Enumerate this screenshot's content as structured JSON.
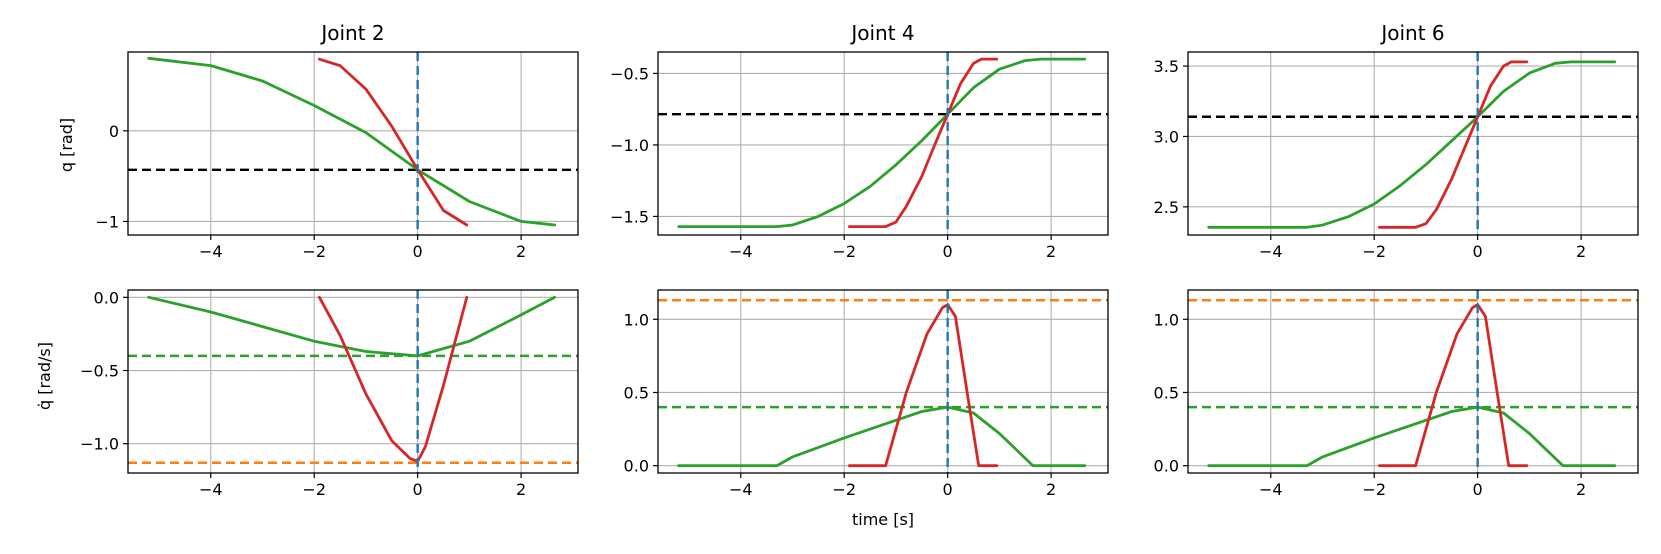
{
  "figure": {
    "xlabel": "time [s]",
    "ylabel_top": "q [rad]",
    "ylabel_bottom": "q̇ [rad/s]"
  },
  "chart_data": [
    {
      "type": "line",
      "row": 0,
      "col": 0,
      "title": "Joint 2",
      "ylabel": "q [rad]",
      "xlim": [
        -5.6,
        3.1
      ],
      "ylim": [
        -1.15,
        0.87
      ],
      "xticks": [
        -4,
        -2,
        0,
        2
      ],
      "xtick_labels": [
        "−4",
        "−2",
        "0",
        "2"
      ],
      "yticks": [
        -1,
        0
      ],
      "ytick_labels": [
        "−1",
        "0"
      ],
      "grid": true,
      "hlines": [
        {
          "y": -0.43,
          "color": "#000000",
          "dash": true
        }
      ],
      "vlines": [
        {
          "x": 0,
          "color": "#1f77b4",
          "dash": true
        }
      ],
      "series": [
        {
          "color": "#2ca02c",
          "x": [
            -5.2,
            -4,
            -3,
            -2,
            -1,
            0,
            1,
            2,
            2.65
          ],
          "y": [
            0.8,
            0.72,
            0.55,
            0.28,
            -0.02,
            -0.43,
            -0.78,
            -1.0,
            -1.04
          ]
        },
        {
          "color": "#ff7f0e",
          "dashed": true,
          "x": [
            -1.9,
            -1.5,
            -1,
            -0.5,
            0,
            0.5,
            0.95
          ],
          "y": [
            0.79,
            0.72,
            0.46,
            0.05,
            -0.43,
            -0.88,
            -1.04
          ]
        },
        {
          "color": "#d62728",
          "x": [
            -1.9,
            -1.5,
            -1,
            -0.5,
            0,
            0.5,
            0.95
          ],
          "y": [
            0.79,
            0.72,
            0.46,
            0.05,
            -0.43,
            -0.88,
            -1.04
          ]
        }
      ]
    },
    {
      "type": "line",
      "row": 0,
      "col": 1,
      "title": "Joint 4",
      "xlim": [
        -5.6,
        3.1
      ],
      "ylim": [
        -1.63,
        -0.35
      ],
      "xticks": [
        -4,
        -2,
        0,
        2
      ],
      "xtick_labels": [
        "−4",
        "−2",
        "0",
        "2"
      ],
      "yticks": [
        -1.5,
        -1.0,
        -0.5
      ],
      "ytick_labels": [
        "−1.5",
        "−1.0",
        "−0.5"
      ],
      "grid": true,
      "hlines": [
        {
          "y": -0.785,
          "color": "#000000",
          "dash": true
        }
      ],
      "vlines": [
        {
          "x": 0,
          "color": "#1f77b4",
          "dash": true
        }
      ],
      "series": [
        {
          "color": "#2ca02c",
          "x": [
            -5.2,
            -4,
            -3.3,
            -3,
            -2.5,
            -2,
            -1.5,
            -1,
            -0.5,
            0,
            0.5,
            1,
            1.5,
            1.8,
            2.65
          ],
          "y": [
            -1.571,
            -1.571,
            -1.571,
            -1.56,
            -1.5,
            -1.41,
            -1.29,
            -1.14,
            -0.97,
            -0.785,
            -0.6,
            -0.47,
            -0.41,
            -0.4,
            -0.4
          ]
        },
        {
          "color": "#ff7f0e",
          "dashed": true,
          "x": [
            -1.9,
            -1.2,
            -1.0,
            -0.8,
            -0.5,
            -0.25,
            0,
            0.25,
            0.5,
            0.65,
            0.95
          ],
          "y": [
            -1.571,
            -1.571,
            -1.54,
            -1.43,
            -1.22,
            -1.0,
            -0.785,
            -0.57,
            -0.43,
            -0.4,
            -0.4
          ]
        },
        {
          "color": "#d62728",
          "x": [
            -1.9,
            -1.2,
            -1.0,
            -0.8,
            -0.5,
            -0.25,
            0,
            0.25,
            0.5,
            0.65,
            0.95
          ],
          "y": [
            -1.571,
            -1.571,
            -1.54,
            -1.43,
            -1.22,
            -1.0,
            -0.785,
            -0.57,
            -0.43,
            -0.4,
            -0.4
          ]
        }
      ]
    },
    {
      "type": "line",
      "row": 0,
      "col": 2,
      "title": "Joint 6",
      "xlim": [
        -5.6,
        3.1
      ],
      "ylim": [
        2.3,
        3.6
      ],
      "xticks": [
        -4,
        -2,
        0,
        2
      ],
      "xtick_labels": [
        "−4",
        "−2",
        "0",
        "2"
      ],
      "yticks": [
        2.5,
        3.0,
        3.5
      ],
      "ytick_labels": [
        "2.5",
        "3.0",
        "3.5"
      ],
      "grid": true,
      "hlines": [
        {
          "y": 3.14,
          "color": "#000000",
          "dash": true
        }
      ],
      "vlines": [
        {
          "x": 0,
          "color": "#1f77b4",
          "dash": true
        }
      ],
      "series": [
        {
          "color": "#2ca02c",
          "x": [
            -5.2,
            -4,
            -3.3,
            -3,
            -2.5,
            -2,
            -1.5,
            -1,
            -0.5,
            0,
            0.5,
            1,
            1.5,
            1.8,
            2.65
          ],
          "y": [
            2.355,
            2.355,
            2.355,
            2.37,
            2.43,
            2.52,
            2.65,
            2.8,
            2.97,
            3.14,
            3.32,
            3.45,
            3.52,
            3.53,
            3.53
          ]
        },
        {
          "color": "#ff7f0e",
          "dashed": true,
          "x": [
            -1.9,
            -1.2,
            -1.0,
            -0.8,
            -0.5,
            -0.25,
            0,
            0.25,
            0.5,
            0.65,
            0.95
          ],
          "y": [
            2.355,
            2.355,
            2.38,
            2.48,
            2.7,
            2.92,
            3.14,
            3.36,
            3.5,
            3.53,
            3.53
          ]
        },
        {
          "color": "#d62728",
          "x": [
            -1.9,
            -1.2,
            -1.0,
            -0.8,
            -0.5,
            -0.25,
            0,
            0.25,
            0.5,
            0.65,
            0.95
          ],
          "y": [
            2.355,
            2.355,
            2.38,
            2.48,
            2.7,
            2.92,
            3.14,
            3.36,
            3.5,
            3.53,
            3.53
          ]
        }
      ]
    },
    {
      "type": "line",
      "row": 1,
      "col": 0,
      "ylabel": "q̇ [rad/s]",
      "xlim": [
        -5.6,
        3.1
      ],
      "ylim": [
        -1.2,
        0.05
      ],
      "xticks": [
        -4,
        -2,
        0,
        2
      ],
      "xtick_labels": [
        "−4",
        "−2",
        "0",
        "2"
      ],
      "yticks": [
        -1.0,
        -0.5,
        0.0
      ],
      "ytick_labels": [
        "−1.0",
        "−0.5",
        "0.0"
      ],
      "grid": true,
      "hlines": [
        {
          "y": -0.4,
          "color": "#2ca02c",
          "dash": true
        },
        {
          "y": -1.13,
          "color": "#ff7f0e",
          "dash": true
        }
      ],
      "vlines": [
        {
          "x": 0,
          "color": "#1f77b4",
          "dash": true
        }
      ],
      "series": [
        {
          "color": "#2ca02c",
          "x": [
            -5.2,
            -4,
            -3,
            -2,
            -1,
            0,
            1,
            2,
            2.65
          ],
          "y": [
            0.0,
            -0.1,
            -0.2,
            -0.3,
            -0.37,
            -0.4,
            -0.3,
            -0.12,
            0.0
          ]
        },
        {
          "color": "#ff7f0e",
          "dashed": true,
          "x": [
            -1.9,
            -1.5,
            -1,
            -0.5,
            -0.15,
            0,
            0.15,
            0.5,
            0.95
          ],
          "y": [
            0.0,
            -0.26,
            -0.66,
            -0.98,
            -1.1,
            -1.12,
            -1.02,
            -0.6,
            0.0
          ]
        },
        {
          "color": "#d62728",
          "x": [
            -1.9,
            -1.5,
            -1,
            -0.5,
            -0.15,
            0,
            0.15,
            0.5,
            0.95
          ],
          "y": [
            0.0,
            -0.26,
            -0.66,
            -0.98,
            -1.1,
            -1.12,
            -1.02,
            -0.6,
            0.0
          ]
        }
      ]
    },
    {
      "type": "line",
      "row": 1,
      "col": 1,
      "xlim": [
        -5.6,
        3.1
      ],
      "ylim": [
        -0.05,
        1.2
      ],
      "xticks": [
        -4,
        -2,
        0,
        2
      ],
      "xtick_labels": [
        "−4",
        "−2",
        "0",
        "2"
      ],
      "yticks": [
        0.0,
        0.5,
        1.0
      ],
      "ytick_labels": [
        "0.0",
        "0.5",
        "1.0"
      ],
      "grid": true,
      "hlines": [
        {
          "y": 0.4,
          "color": "#2ca02c",
          "dash": true
        },
        {
          "y": 1.13,
          "color": "#ff7f0e",
          "dash": true
        }
      ],
      "vlines": [
        {
          "x": 0,
          "color": "#1f77b4",
          "dash": true
        }
      ],
      "series": [
        {
          "color": "#2ca02c",
          "x": [
            -5.2,
            -4,
            -3.3,
            -3,
            -2,
            -1,
            -0.5,
            0,
            0.5,
            1,
            1.65,
            2.65
          ],
          "y": [
            0.0,
            0.0,
            0.0,
            0.06,
            0.19,
            0.31,
            0.37,
            0.4,
            0.36,
            0.22,
            0.0,
            0.0
          ]
        },
        {
          "color": "#ff7f0e",
          "dashed": true,
          "x": [
            -1.9,
            -1.2,
            -0.8,
            -0.4,
            -0.1,
            0,
            0.15,
            0.4,
            0.6,
            0.95
          ],
          "y": [
            0.0,
            0.0,
            0.5,
            0.9,
            1.08,
            1.1,
            1.02,
            0.45,
            0.0,
            0.0
          ]
        },
        {
          "color": "#d62728",
          "x": [
            -1.9,
            -1.2,
            -0.8,
            -0.4,
            -0.1,
            0,
            0.15,
            0.4,
            0.6,
            0.95
          ],
          "y": [
            0.0,
            0.0,
            0.5,
            0.9,
            1.08,
            1.1,
            1.02,
            0.45,
            0.0,
            0.0
          ]
        }
      ]
    },
    {
      "type": "line",
      "row": 1,
      "col": 2,
      "xlim": [
        -5.6,
        3.1
      ],
      "ylim": [
        -0.05,
        1.2
      ],
      "xticks": [
        -4,
        -2,
        0,
        2
      ],
      "xtick_labels": [
        "−4",
        "−2",
        "0",
        "2"
      ],
      "yticks": [
        0.0,
        0.5,
        1.0
      ],
      "ytick_labels": [
        "0.0",
        "0.5",
        "1.0"
      ],
      "grid": true,
      "hlines": [
        {
          "y": 0.4,
          "color": "#2ca02c",
          "dash": true
        },
        {
          "y": 1.13,
          "color": "#ff7f0e",
          "dash": true
        }
      ],
      "vlines": [
        {
          "x": 0,
          "color": "#1f77b4",
          "dash": true
        }
      ],
      "series": [
        {
          "color": "#2ca02c",
          "x": [
            -5.2,
            -4,
            -3.3,
            -3,
            -2,
            -1,
            -0.5,
            0,
            0.5,
            1,
            1.65,
            2.65
          ],
          "y": [
            0.0,
            0.0,
            0.0,
            0.06,
            0.19,
            0.31,
            0.37,
            0.4,
            0.36,
            0.22,
            0.0,
            0.0
          ]
        },
        {
          "color": "#ff7f0e",
          "dashed": true,
          "x": [
            -1.9,
            -1.2,
            -0.8,
            -0.4,
            -0.1,
            0,
            0.15,
            0.4,
            0.6,
            0.95
          ],
          "y": [
            0.0,
            0.0,
            0.5,
            0.9,
            1.08,
            1.1,
            1.02,
            0.45,
            0.0,
            0.0
          ]
        },
        {
          "color": "#d62728",
          "x": [
            -1.9,
            -1.2,
            -0.8,
            -0.4,
            -0.1,
            0,
            0.15,
            0.4,
            0.6,
            0.95
          ],
          "y": [
            0.0,
            0.0,
            0.5,
            0.9,
            1.08,
            1.1,
            1.02,
            0.45,
            0.0,
            0.0
          ]
        }
      ]
    }
  ]
}
